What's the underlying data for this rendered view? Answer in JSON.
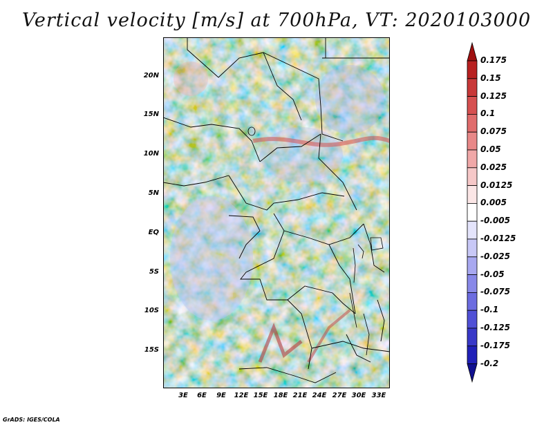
{
  "title": "Vertical velocity [m/s] at 700hPa, VT: 2020103000",
  "lat_labels": [
    "20N",
    "15N",
    "10N",
    "5N",
    "EQ",
    "5S",
    "10S",
    "15S"
  ],
  "lon_labels": [
    "3E",
    "6E",
    "9E",
    "12E",
    "15E",
    "18E",
    "21E",
    "24E",
    "27E",
    "30E",
    "33E"
  ],
  "colorbar": {
    "levels": [
      "0.175",
      "0.15",
      "0.125",
      "0.1",
      "0.075",
      "0.05",
      "0.025",
      "0.0125",
      "0.005",
      "-0.005",
      "-0.0125",
      "-0.025",
      "-0.05",
      "-0.075",
      "-0.1",
      "-0.125",
      "-0.175",
      "-0.2"
    ],
    "colors": [
      "#a01010",
      "#b82020",
      "#c83838",
      "#d65050",
      "#e06c6c",
      "#e88888",
      "#f0a8a8",
      "#f6c8c8",
      "#fbe6e6",
      "#ffffff",
      "#e4e4fb",
      "#c8c8f6",
      "#a8a8f0",
      "#8888e8",
      "#6c6ce0",
      "#5050d6",
      "#3838c8",
      "#2020b8",
      "#101090"
    ]
  },
  "credit": "GrADS: IGES/COLA"
}
